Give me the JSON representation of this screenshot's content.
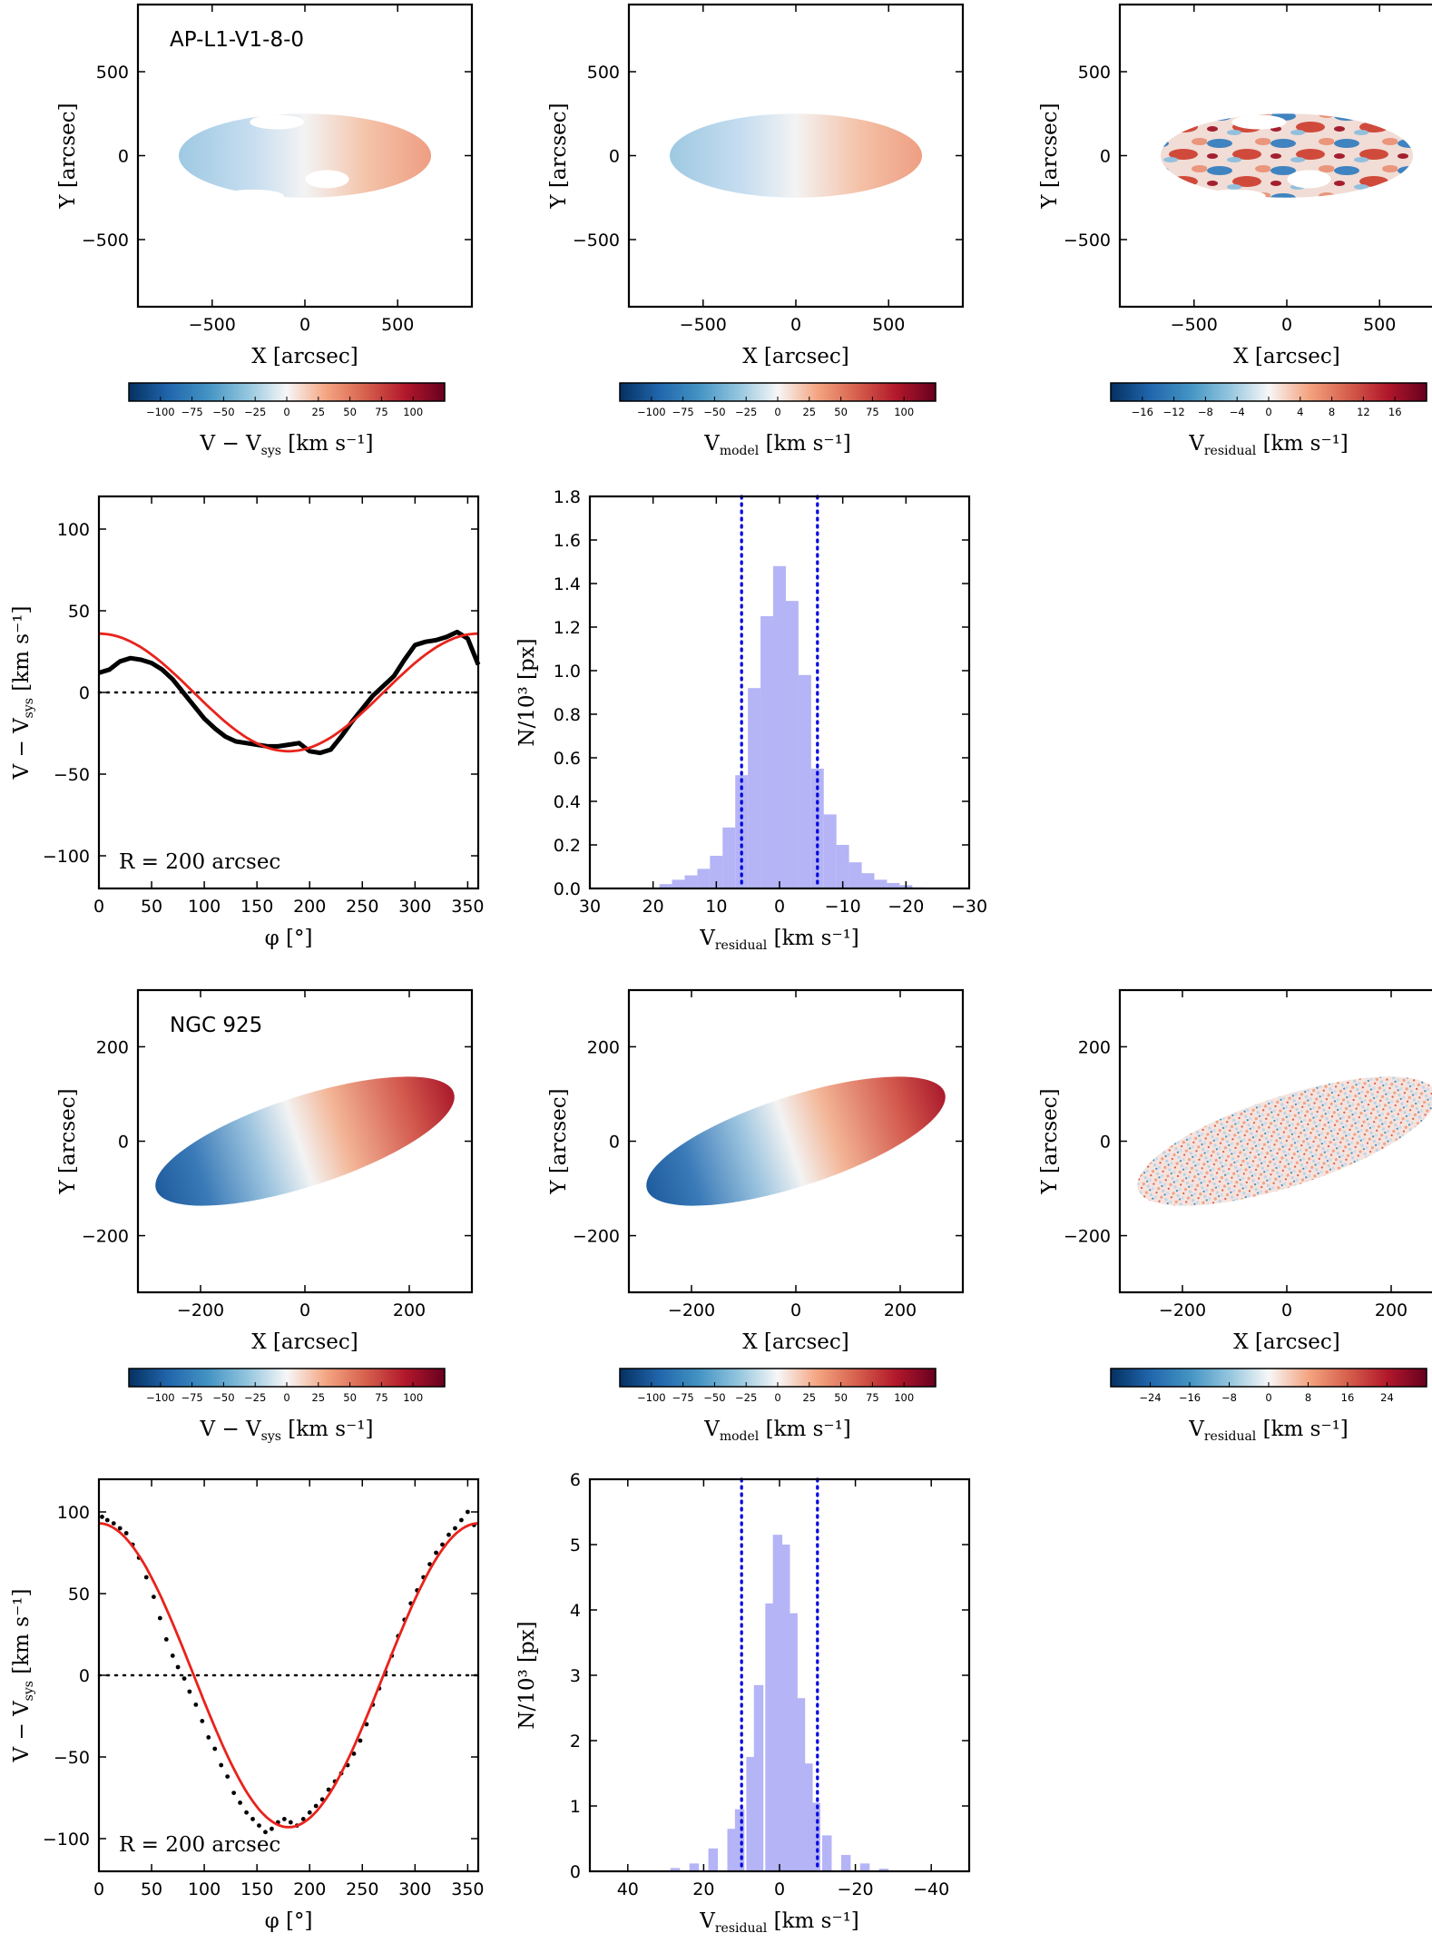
{
  "figure": {
    "rows": [
      {
        "name": "AP-L1-V1-8-0",
        "map_extent": 900,
        "map_ticks": [
          -500,
          0,
          500
        ],
        "obs_cbar_ticks": [
          "-100",
          "-75",
          "-50",
          "-25",
          "0",
          "25",
          "50",
          "75",
          "100"
        ],
        "model_cbar_ticks": [
          "-100",
          "-75",
          "-50",
          "-25",
          "0",
          "25",
          "50",
          "75",
          "100"
        ],
        "res_cbar_ticks": [
          "-16",
          "-12",
          "-8",
          "-4",
          "0",
          "4",
          "8",
          "12",
          "16"
        ]
      },
      {
        "name": "NGC 925",
        "map_extent": 320,
        "map_ticks": [
          -200,
          0,
          200
        ],
        "obs_cbar_ticks": [
          "-100",
          "-75",
          "-50",
          "-25",
          "0",
          "25",
          "50",
          "75",
          "100"
        ],
        "model_cbar_ticks": [
          "-100",
          "-75",
          "-50",
          "-25",
          "0",
          "25",
          "50",
          "75",
          "100"
        ],
        "res_cbar_ticks": [
          "-24",
          "-16",
          "-8",
          "0",
          "8",
          "16",
          "24"
        ]
      }
    ],
    "labels": {
      "map_x": "X [arcsec]",
      "map_y": "Y [arcsec]",
      "obs_cbar": "V − V_sys [km s⁻¹]",
      "model_cbar": "V_model [km s⁻¹]",
      "res_cbar": "V_residual [km s⁻¹]",
      "phi_x": "φ [°]",
      "phi_y": "V − V_sys [km s⁻¹]",
      "hist_x": "V_residual [km s⁻¹]",
      "hist_y": "N/10³ [px]",
      "radius_note": "R = 200 arcsec"
    },
    "colors": {
      "fit": "#e8231b",
      "data": "#000000",
      "hist": "#b4b4f6",
      "dotted": "#0000e0",
      "cmap_neg": "#053061",
      "cmap_mid": "#f7f7f7",
      "cmap_pos": "#67001f"
    }
  },
  "chart_data": [
    {
      "type": "line",
      "panel": "AP-L1-V1-8-0 azimuthal velocity profile",
      "xlim": [
        0,
        360
      ],
      "ylim": [
        -120,
        120
      ],
      "xticks": [
        0,
        50,
        100,
        150,
        200,
        250,
        300,
        350
      ],
      "yticks": [
        -100,
        -50,
        0,
        50,
        100
      ],
      "series": [
        {
          "x": [
            0,
            10,
            20,
            30,
            40,
            50,
            60,
            70,
            80,
            90,
            100,
            110,
            120,
            130,
            140,
            150,
            160,
            170,
            180,
            190,
            200,
            210,
            220,
            230,
            240,
            250,
            260,
            270,
            280,
            290,
            300,
            310,
            320,
            330,
            340,
            350,
            360
          ],
          "y": [
            12,
            14,
            19,
            21,
            20,
            18,
            14,
            8,
            0,
            -8,
            -16,
            -22,
            -27,
            -30,
            -31,
            -32,
            -33,
            -33,
            -32,
            -31,
            -36,
            -37,
            -35,
            -27,
            -18,
            -10,
            -2,
            4,
            10,
            20,
            29,
            31,
            32,
            34,
            37,
            33,
            17
          ]
        },
        {
          "x": [
            0,
            30,
            60,
            90,
            120,
            150,
            180,
            210,
            240,
            270,
            300,
            330,
            360
          ],
          "y": [
            36,
            31,
            18,
            0,
            -18,
            -31,
            -36,
            -31,
            -18,
            0,
            18,
            31,
            36
          ]
        }
      ],
      "reference_y": 0
    },
    {
      "type": "bar",
      "panel": "AP-L1-V1-8-0 residual histogram",
      "xlim": [
        30,
        -30
      ],
      "ylim": [
        0,
        1.8
      ],
      "xticks": [
        30,
        20,
        10,
        0,
        -10,
        -20,
        -30
      ],
      "yticks": [
        0.0,
        0.2,
        0.4,
        0.6,
        0.8,
        1.0,
        1.2,
        1.4,
        1.6,
        1.8
      ],
      "x": [
        18,
        16,
        14,
        12,
        10,
        8,
        6,
        4,
        2,
        0,
        -2,
        -4,
        -6,
        -8,
        -10,
        -12,
        -14,
        -16,
        -18,
        -20,
        -22
      ],
      "values": [
        0.02,
        0.04,
        0.06,
        0.09,
        0.15,
        0.28,
        0.52,
        0.92,
        1.25,
        1.48,
        1.32,
        0.98,
        0.55,
        0.34,
        0.2,
        0.12,
        0.07,
        0.04,
        0.025,
        0.015,
        0.005
      ],
      "vlines": [
        6,
        -6
      ]
    },
    {
      "type": "scatter",
      "panel": "NGC 925 azimuthal velocity profile",
      "xlim": [
        0,
        360
      ],
      "ylim": [
        -120,
        120
      ],
      "xticks": [
        0,
        50,
        100,
        150,
        200,
        250,
        300,
        350
      ],
      "yticks": [
        -100,
        -50,
        0,
        50,
        100
      ],
      "series": [
        {
          "x": [
            3,
            8,
            14,
            20,
            26,
            32,
            38,
            45,
            52,
            58,
            64,
            70,
            75,
            81,
            86,
            92,
            98,
            104,
            110,
            116,
            122,
            128,
            134,
            140,
            146,
            152,
            158,
            164,
            170,
            176,
            182,
            188,
            194,
            200,
            206,
            212,
            218,
            224,
            230,
            236,
            242,
            248,
            254,
            260,
            266,
            272,
            278,
            284,
            290,
            296,
            302,
            308,
            314,
            320,
            326,
            332,
            338,
            344,
            350,
            356
          ],
          "y": [
            97,
            95,
            93,
            90,
            87,
            80,
            72,
            60,
            48,
            35,
            22,
            12,
            5,
            -2,
            -10,
            -18,
            -28,
            -38,
            -45,
            -55,
            -62,
            -72,
            -78,
            -84,
            -88,
            -92,
            -96,
            -94,
            -90,
            -88,
            -90,
            -92,
            -88,
            -84,
            -80,
            -76,
            -70,
            -65,
            -60,
            -55,
            -48,
            -40,
            -30,
            -18,
            -8,
            2,
            12,
            24,
            34,
            44,
            52,
            60,
            68,
            75,
            80,
            86,
            90,
            95,
            100,
            92
          ]
        },
        {
          "x": [
            0,
            30,
            60,
            90,
            120,
            150,
            180,
            210,
            240,
            270,
            300,
            330,
            360
          ],
          "y": [
            93,
            80,
            46,
            0,
            -46,
            -80,
            -93,
            -80,
            -46,
            0,
            46,
            80,
            93
          ]
        }
      ],
      "reference_y": 0
    },
    {
      "type": "bar",
      "panel": "NGC 925 residual histogram",
      "xlim": [
        50,
        -50
      ],
      "ylim": [
        0,
        6
      ],
      "xticks": [
        40,
        20,
        0,
        -20,
        -40
      ],
      "yticks": [
        0,
        1,
        2,
        3,
        4,
        5,
        6
      ],
      "x": [
        27.5,
        22.5,
        17.5,
        12.5,
        10.5,
        7.5,
        5.5,
        2.5,
        0.5,
        -1.5,
        -3.5,
        -5.5,
        -7.5,
        -9.5,
        -12.5,
        -17.5,
        -22.5,
        -27.5
      ],
      "values": [
        0.05,
        0.12,
        0.35,
        0.65,
        0.95,
        1.75,
        2.85,
        4.1,
        5.15,
        5.0,
        3.95,
        2.65,
        1.65,
        1.05,
        0.55,
        0.25,
        0.12,
        0.04
      ],
      "vlines": [
        10,
        -10
      ]
    }
  ]
}
